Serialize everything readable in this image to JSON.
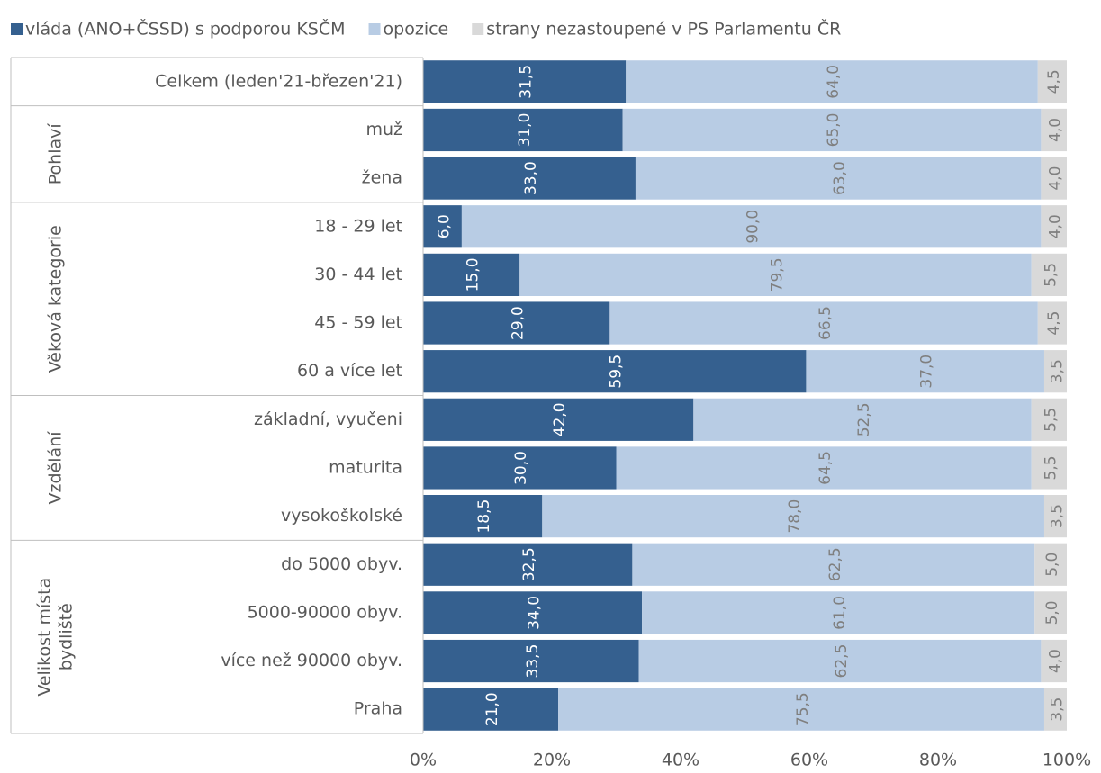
{
  "chart_data": {
    "type": "stacked-barh",
    "groups": [
      {
        "categories": [
          "Celkem (leden'21-březen'21)"
        ]
      },
      {
        "label": [
          "Pohlaví"
        ],
        "categories": [
          "muž",
          "žena"
        ]
      },
      {
        "label": [
          "Věková kategorie"
        ],
        "categories": [
          "18 - 29 let",
          "30 - 44 let",
          "45 - 59 let",
          "60 a více let"
        ]
      },
      {
        "label": [
          "Vzdělání"
        ],
        "categories": [
          "základní, vyučeni",
          "maturita",
          "vysokoškolské"
        ]
      },
      {
        "label": [
          "Velikost místa",
          "bydliště"
        ],
        "categories": [
          "do 5000 obyv.",
          "5000-90000 obyv.",
          "více než 90000 obyv.",
          "Praha"
        ]
      }
    ],
    "series": [
      {
        "name": "vláda (ANO+ČSSD) s podporou KSČM",
        "color": "#35608f",
        "label_color": "#ffffff",
        "values": [
          31.5,
          31,
          33,
          6,
          15,
          29,
          59.5,
          42,
          30,
          18.5,
          32.5,
          34,
          33.5,
          21
        ],
        "value_labels": [
          "31,5",
          "31,0",
          "33,0",
          "6,0",
          "15,0",
          "29,0",
          "59,5",
          "42,0",
          "30,0",
          "18,5",
          "32,5",
          "34,0",
          "33,5",
          "21,0"
        ]
      },
      {
        "name": "opozice",
        "color": "#b8cce4",
        "label_color": "#7f7f7f",
        "values": [
          64,
          65,
          63,
          90,
          79.5,
          66.5,
          37,
          52.5,
          64.5,
          78,
          62.5,
          61,
          62.5,
          75.5
        ],
        "value_labels": [
          "64,0",
          "65,0",
          "63,0",
          "90,0",
          "79,5",
          "66,5",
          "37,0",
          "52,5",
          "64,5",
          "78,0",
          "62,5",
          "61,0",
          "62,5",
          "75,5"
        ]
      },
      {
        "name": "strany nezastoupené v PS Parlamentu ČR",
        "color": "#d9d9d9",
        "label_color": "#7f7f7f",
        "values": [
          4.5,
          4,
          4,
          4,
          5.5,
          4.5,
          3.5,
          5.5,
          5.5,
          3.5,
          5,
          5,
          4,
          3.5
        ],
        "value_labels": [
          "4,5",
          "4,0",
          "4,0",
          "4,0",
          "5,5",
          "4,5",
          "3,5",
          "5,5",
          "5,5",
          "3,5",
          "5,0",
          "5,0",
          "4,0",
          "3,5"
        ]
      }
    ],
    "xlim": [
      0,
      100
    ],
    "xticks": [
      {
        "value": 0,
        "label": "0%"
      },
      {
        "value": 20,
        "label": "20%"
      },
      {
        "value": 40,
        "label": "40%"
      },
      {
        "value": 60,
        "label": "60%"
      },
      {
        "value": 80,
        "label": "80%"
      },
      {
        "value": 100,
        "label": "100%"
      }
    ]
  }
}
